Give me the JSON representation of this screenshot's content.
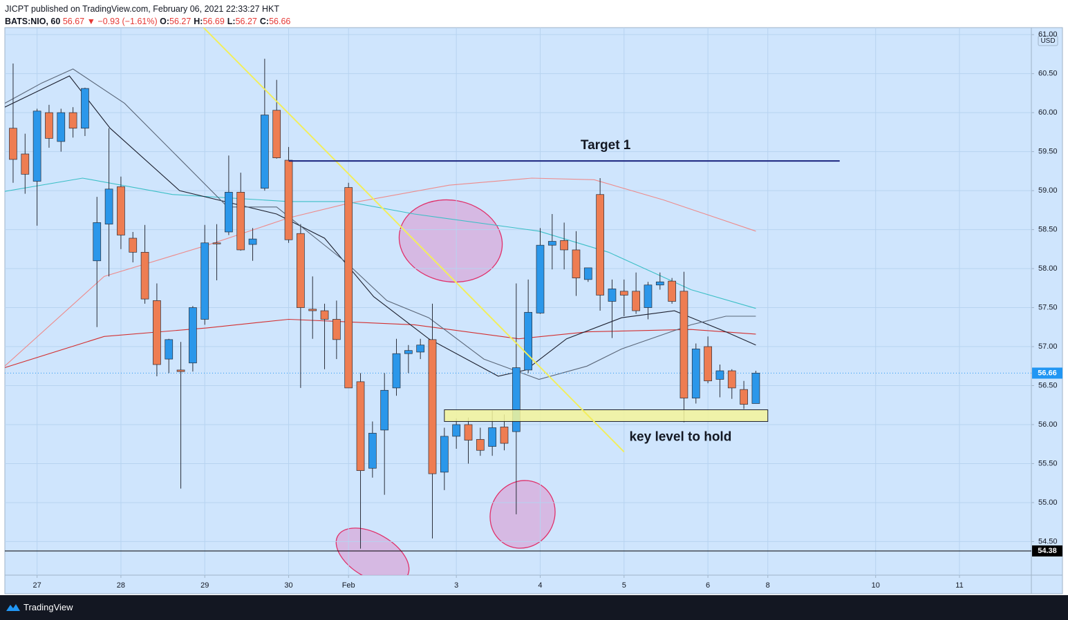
{
  "header": {
    "publisher": "JICPT published on TradingView.com, February 06, 2021 22:33:27 HKT",
    "symbol": "BATS:NIO, 60",
    "last": "56.67",
    "arrow": "▼",
    "change": "−0.93 (−1.61%)",
    "ohlc": [
      {
        "key": "O:",
        "value": "56.27"
      },
      {
        "key": "H:",
        "value": "56.69"
      },
      {
        "key": "L:",
        "value": "56.27"
      },
      {
        "key": "C:",
        "value": "56.66"
      }
    ]
  },
  "chart_data": {
    "type": "candlestick",
    "currency": "USD",
    "grid": true,
    "up_color": "#2b97ea",
    "down_color": "#ee7d52",
    "x": [
      0,
      1,
      2,
      3,
      4,
      5,
      6,
      7,
      8,
      9,
      10,
      11,
      12,
      13,
      14,
      15,
      16,
      17,
      18,
      19,
      20,
      21,
      22,
      23,
      24,
      25,
      26,
      27,
      28,
      29,
      30,
      31,
      32,
      33,
      34,
      35,
      36,
      37,
      38,
      39,
      40,
      41,
      42,
      43,
      44,
      45,
      46,
      47,
      48,
      49,
      50,
      51,
      52,
      53,
      54,
      55,
      56,
      57,
      58,
      59,
      60,
      61,
      62
    ],
    "open": [
      59.8,
      59.47,
      59.12,
      60.0,
      59.63,
      60.0,
      59.8,
      58.1,
      58.57,
      59.05,
      58.39,
      58.21,
      57.59,
      56.84,
      56.7,
      56.79,
      57.35,
      58.33,
      58.47,
      58.98,
      58.31,
      59.03,
      60.03,
      59.39,
      58.45,
      57.48,
      57.46,
      57.35,
      59.04,
      56.55,
      55.44,
      55.93,
      56.47,
      56.91,
      56.93,
      57.09,
      55.39,
      55.85,
      56.0,
      55.81,
      55.72,
      55.97,
      55.91,
      56.7,
      57.43,
      58.3,
      58.36,
      58.24,
      57.86,
      58.95,
      57.58,
      57.71,
      57.71,
      57.5,
      57.79,
      57.84,
      57.71,
      56.34,
      57.0,
      56.58,
      56.69,
      56.45,
      56.27
    ],
    "high": [
      60.63,
      59.73,
      60.05,
      60.1,
      60.05,
      60.07,
      60.32,
      58.92,
      59.8,
      59.18,
      58.47,
      58.56,
      57.81,
      57.1,
      57.06,
      57.52,
      58.56,
      58.57,
      59.45,
      59.23,
      58.52,
      60.69,
      60.42,
      59.56,
      58.57,
      57.9,
      57.55,
      57.59,
      59.1,
      56.66,
      56.04,
      56.66,
      57.1,
      57.02,
      57.1,
      57.55,
      55.96,
      56.08,
      56.09,
      55.96,
      56.18,
      56.13,
      57.81,
      57.86,
      58.52,
      58.7,
      58.59,
      58.48,
      58.0,
      59.16,
      57.86,
      57.86,
      57.95,
      57.83,
      57.95,
      57.88,
      57.96,
      57.04,
      57.13,
      56.77,
      56.71,
      56.56,
      56.69
    ],
    "low": [
      59.1,
      58.96,
      58.55,
      59.55,
      59.5,
      59.68,
      59.7,
      57.25,
      57.9,
      58.25,
      58.08,
      57.55,
      56.62,
      56.66,
      55.18,
      56.68,
      57.28,
      57.85,
      58.43,
      58.23,
      58.1,
      59.0,
      59.41,
      58.33,
      56.47,
      57.1,
      56.71,
      56.84,
      56.47,
      54.41,
      55.32,
      55.1,
      56.37,
      56.66,
      56.84,
      54.54,
      55.16,
      55.69,
      55.5,
      55.6,
      55.6,
      55.67,
      54.85,
      56.66,
      57.42,
      57.99,
      57.99,
      57.65,
      57.83,
      57.46,
      57.11,
      57.39,
      57.42,
      57.35,
      57.73,
      57.55,
      56.03,
      56.27,
      56.53,
      56.35,
      56.33,
      56.2,
      56.27
    ],
    "close": [
      59.4,
      59.21,
      60.02,
      59.67,
      60.0,
      59.8,
      60.31,
      58.59,
      59.02,
      58.43,
      58.21,
      57.61,
      56.77,
      57.09,
      56.68,
      57.5,
      58.33,
      58.32,
      58.98,
      58.24,
      58.38,
      59.97,
      59.42,
      58.37,
      57.5,
      57.46,
      57.35,
      57.09,
      56.47,
      55.41,
      55.89,
      56.44,
      56.91,
      56.95,
      57.02,
      55.37,
      55.85,
      56.0,
      55.8,
      55.67,
      55.96,
      55.76,
      56.73,
      57.44,
      58.3,
      58.35,
      58.24,
      57.88,
      58.01,
      57.66,
      57.74,
      57.66,
      57.46,
      57.79,
      57.83,
      57.58,
      56.34,
      56.97,
      56.56,
      56.69,
      56.47,
      56.26,
      56.66
    ],
    "xlim": [
      -0.69,
      85
    ],
    "xticks": [
      {
        "value": 2,
        "label": "27"
      },
      {
        "value": 9,
        "label": "28"
      },
      {
        "value": 16,
        "label": "29"
      },
      {
        "value": 23,
        "label": "30"
      },
      {
        "value": 28,
        "label": "Feb"
      },
      {
        "value": 37,
        "label": "3"
      },
      {
        "value": 44,
        "label": "4"
      },
      {
        "value": 51,
        "label": "5"
      },
      {
        "value": 58,
        "label": "6"
      },
      {
        "value": 63,
        "label": "8"
      },
      {
        "value": 72,
        "label": "10"
      },
      {
        "value": 79,
        "label": "11"
      }
    ],
    "ylim": [
      54.07,
      61.09
    ],
    "yticks": [
      {
        "value": 54.5,
        "label": "54.50"
      },
      {
        "value": 55,
        "label": "55.00"
      },
      {
        "value": 55.5,
        "label": "55.50"
      },
      {
        "value": 56,
        "label": "56.00"
      },
      {
        "value": 56.5,
        "label": "56.50"
      },
      {
        "value": 57,
        "label": "57.00"
      },
      {
        "value": 57.5,
        "label": "57.50"
      },
      {
        "value": 58,
        "label": "58.00"
      },
      {
        "value": 58.5,
        "label": "58.50"
      },
      {
        "value": 59,
        "label": "59.00"
      },
      {
        "value": 59.5,
        "label": "59.50"
      },
      {
        "value": 60,
        "label": "60.00"
      },
      {
        "value": 60.5,
        "label": "60.50"
      },
      {
        "value": 61,
        "label": "61.00"
      }
    ],
    "overlays": [
      {
        "color": "#ee8a8a",
        "x": [
          -0.7,
          7.6,
          16.2,
          23,
          27.8,
          36.4,
          43.3,
          48.5,
          54.3,
          62
        ],
        "values": [
          56.75,
          57.9,
          58.3,
          58.65,
          58.83,
          59.07,
          59.16,
          59.14,
          58.88,
          58.48
        ]
      },
      {
        "color": "#d32f2f",
        "x": [
          -0.7,
          7.6,
          16.2,
          23,
          33.5,
          42.2,
          48,
          56.6,
          62
        ],
        "values": [
          56.73,
          57.13,
          57.24,
          57.35,
          57.28,
          57.1,
          57.19,
          57.22,
          57.16
        ]
      },
      {
        "color": "#3bbfc6",
        "x": [
          -0.7,
          5.8,
          13.3,
          23,
          27.8,
          33.5,
          43.9,
          49.7,
          56.6,
          62
        ],
        "values": [
          58.99,
          59.16,
          58.95,
          58.86,
          58.86,
          58.7,
          58.48,
          58.21,
          57.73,
          57.49
        ]
      },
      {
        "color": "#1c1f2e",
        "x": [
          -0.7,
          4.7,
          8.1,
          13.9,
          22,
          26,
          30.1,
          34.7,
          40.5,
          42.8,
          46.2,
          50.8,
          55.2,
          59.5,
          62
        ],
        "values": [
          60.07,
          60.47,
          59.8,
          59.0,
          58.7,
          58.39,
          57.64,
          57.1,
          56.62,
          56.7,
          57.1,
          57.37,
          57.46,
          57.19,
          57.02
        ]
      },
      {
        "color": "#5a6678",
        "x": [
          -0.7,
          2.4,
          5,
          9.3,
          13.9,
          17.9,
          22,
          27.8,
          31.2,
          34.7,
          39.3,
          43.9,
          47.9,
          50.8,
          56.6,
          59.5,
          62
        ],
        "values": [
          60.12,
          60.38,
          60.56,
          60.12,
          59.41,
          58.79,
          58.79,
          58.08,
          57.59,
          57.37,
          56.84,
          56.58,
          56.75,
          56.97,
          57.28,
          57.39,
          57.39
        ]
      }
    ],
    "trendline": {
      "color": "#f2ee5c",
      "x": [
        15.9,
        51.0
      ],
      "values": [
        61.09,
        55.65
      ]
    },
    "target": {
      "label": "Target 1",
      "value": 59.38,
      "x": [
        23,
        69
      ],
      "color": "#1a237e"
    },
    "zone": {
      "label": "key level to hold",
      "low": 56.04,
      "high": 56.19,
      "x": [
        36,
        63
      ],
      "color": "#f4f59a"
    },
    "support": {
      "value": 54.38,
      "color": "#000000"
    },
    "last_price": {
      "value": 56.66,
      "color": "#2196f3"
    }
  },
  "footer": {
    "brand": "TradingView"
  }
}
